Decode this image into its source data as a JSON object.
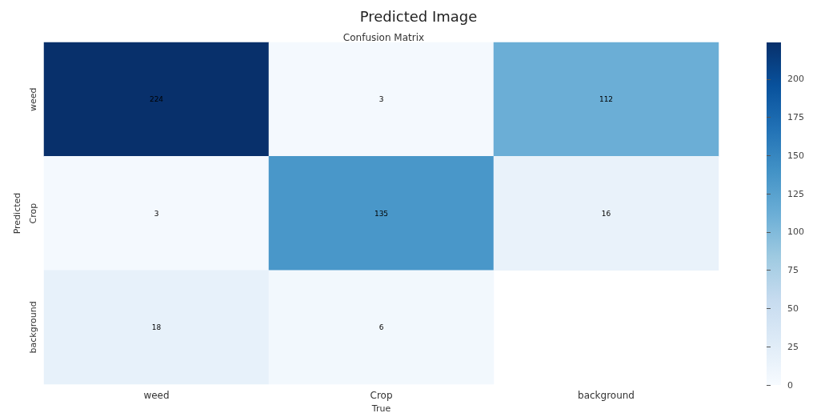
{
  "chart_data": {
    "type": "heatmap",
    "title": "Predicted Image",
    "subtitle": "Confusion Matrix",
    "xlabel": "True",
    "ylabel": "Predicted",
    "categories": [
      "weed",
      "Crop",
      "background"
    ],
    "y_categories": [
      "weed",
      "Crop",
      "background"
    ],
    "cells": [
      [
        224,
        3,
        112
      ],
      [
        3,
        135,
        16
      ],
      [
        18,
        6,
        null
      ]
    ],
    "clim": [
      0,
      224
    ],
    "cticks": [
      0,
      25,
      50,
      75,
      100,
      125,
      150,
      175,
      200
    ],
    "data_labels": true
  }
}
